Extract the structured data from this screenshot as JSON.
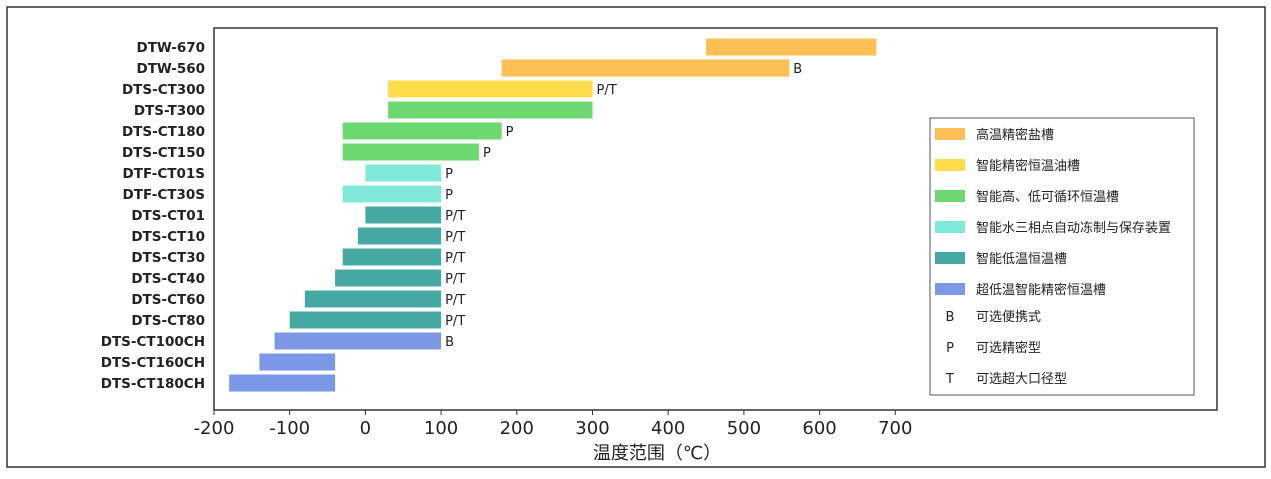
{
  "chart_data": {
    "type": "bar",
    "orientation": "horizontal-range",
    "xlabel": "温度范围（℃）",
    "xlim": [
      -200,
      1125
    ],
    "xticks": [
      -200,
      -100,
      0,
      100,
      200,
      300,
      400,
      500,
      600,
      700
    ],
    "grid": false,
    "legend_placement": "right",
    "categories": [
      "DTW-670",
      "DTW-560",
      "DTS-CT300",
      "DTS-T300",
      "DTS-CT180",
      "DTS-CT150",
      "DTF-CT01S",
      "DTF-CT30S",
      "DTS-CT01",
      "DTS-CT10",
      "DTS-CT30",
      "DTS-CT40",
      "DTS-CT60",
      "DTS-CT80",
      "DTS-CT100CH",
      "DTS-CT160CH",
      "DTS-CT180CH"
    ],
    "ranges": [
      [
        450,
        675
      ],
      [
        180,
        560
      ],
      [
        30,
        300
      ],
      [
        30,
        300
      ],
      [
        -30,
        180
      ],
      [
        -30,
        150
      ],
      [
        0,
        100
      ],
      [
        -30,
        100
      ],
      [
        0,
        100
      ],
      [
        -10,
        100
      ],
      [
        -30,
        100
      ],
      [
        -40,
        100
      ],
      [
        -80,
        100
      ],
      [
        -100,
        100
      ],
      [
        -120,
        100
      ],
      [
        -140,
        -40
      ],
      [
        -180,
        -40
      ]
    ],
    "group": [
      0,
      0,
      1,
      2,
      2,
      2,
      3,
      3,
      4,
      4,
      4,
      4,
      4,
      4,
      5,
      5,
      5
    ],
    "annotations": [
      "",
      "B",
      "P/T",
      "",
      "P",
      "P",
      "P",
      "P",
      "P/T",
      "P/T",
      "P/T",
      "P/T",
      "P/T",
      "P/T",
      "B",
      "",
      ""
    ],
    "series": [
      {
        "name": "高温精密盐槽",
        "color": "#FBBF55"
      },
      {
        "name": "智能精密恒温油槽",
        "color": "#FDDD4C"
      },
      {
        "name": "智能高、低可循环恒温槽",
        "color": "#6DD86F"
      },
      {
        "name": "智能水三相点自动冻制与保存装置",
        "color": "#7FE8D8"
      },
      {
        "name": "智能低温恒温槽",
        "color": "#46A8A2"
      },
      {
        "name": "超低温智能精密恒温槽",
        "color": "#7B97E6"
      }
    ],
    "legend_notes": [
      {
        "key": "B",
        "label": "可选便携式"
      },
      {
        "key": "P",
        "label": "可选精密型"
      },
      {
        "key": "T",
        "label": "可选超大口径型"
      }
    ]
  }
}
